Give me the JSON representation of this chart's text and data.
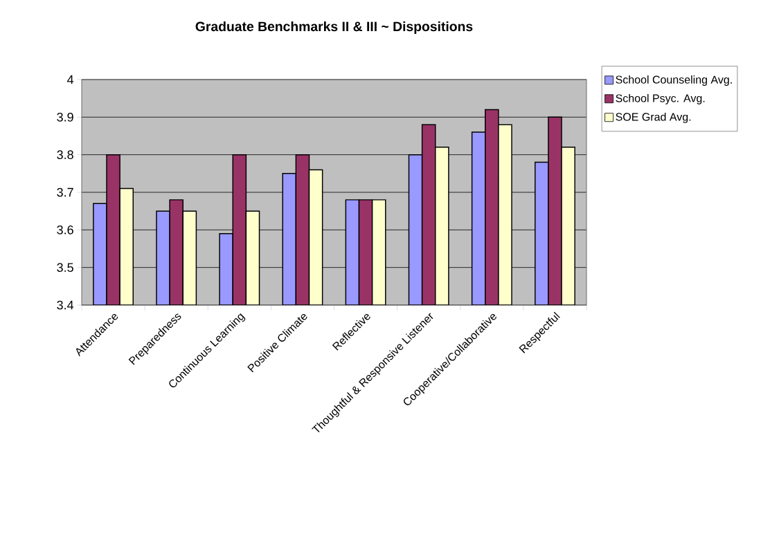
{
  "chart_data": {
    "type": "bar",
    "title": "Graduate Benchmarks II & III ~ Dispositions",
    "categories": [
      "Attendance",
      "Preparedness",
      "Continuous Learning",
      "Positive Climate",
      "Reflective",
      "Thoughtful & Responsive Listener",
      "Cooperative/Collaborative",
      "Respectful"
    ],
    "series": [
      {
        "name": "School Counseling Avg.",
        "color": "#9999ff",
        "values": [
          3.67,
          3.65,
          3.59,
          3.75,
          3.68,
          3.8,
          3.86,
          3.78
        ]
      },
      {
        "name": "School Psyc. Avg.",
        "color": "#993366",
        "values": [
          3.8,
          3.68,
          3.8,
          3.8,
          3.68,
          3.88,
          3.92,
          3.9
        ]
      },
      {
        "name": "SOE Grad Avg.",
        "color": "#ffffcc",
        "values": [
          3.71,
          3.65,
          3.65,
          3.76,
          3.68,
          3.82,
          3.88,
          3.82
        ]
      }
    ],
    "ylim": [
      3.4,
      4
    ],
    "yticks": [
      3.4,
      3.5,
      3.6,
      3.7,
      3.8,
      3.9,
      4
    ],
    "grid": "y",
    "legend": "right"
  }
}
